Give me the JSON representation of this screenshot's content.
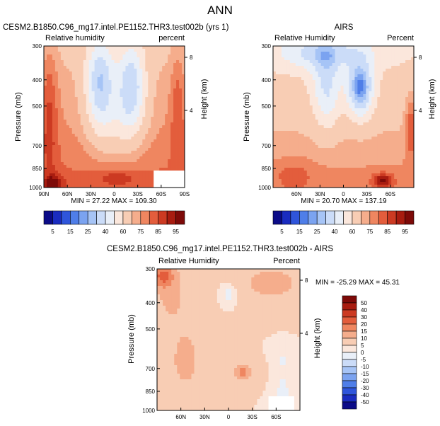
{
  "page_title": "ANN",
  "chart_data": [
    {
      "type": "heatmap",
      "id": "model",
      "title": "CESM2.B1850.C96_mg17.intel.PE1152.THR3.test002b (yrs 1)",
      "left_label": "Relative humidity",
      "right_label": "percent",
      "ylabel": "Pressure (mb)",
      "y2label": "Height (km)",
      "y_ticks": [
        "300",
        "400",
        "500",
        "700",
        "850",
        "1000"
      ],
      "y2_ticks": [
        "8",
        "4"
      ],
      "x_ticks": [
        "90N",
        "60N",
        "30N",
        "0",
        "30S",
        "60S",
        "90S"
      ],
      "stats": "MIN = 27.22   MAX = 109.30",
      "min": 27.22,
      "max": 109.3,
      "colorbar_ticks": [
        "5",
        "15",
        "25",
        "40",
        "60",
        "75",
        "85",
        "95"
      ]
    },
    {
      "type": "heatmap",
      "id": "obs",
      "title": "AIRS",
      "left_label": "Relative Humidity",
      "right_label": "Percent",
      "ylabel": "Pressure (mb)",
      "y2label": "Height (km)",
      "y_ticks": [
        "300",
        "400",
        "500",
        "700",
        "850",
        "1000"
      ],
      "y2_ticks": [
        "8",
        "4"
      ],
      "x_ticks": [
        "60N",
        "30N",
        "0",
        "30S",
        "60S"
      ],
      "stats": "MIN = 20.70   MAX = 137.19",
      "min": 20.7,
      "max": 137.19,
      "colorbar_ticks": [
        "5",
        "15",
        "25",
        "40",
        "60",
        "75",
        "85",
        "95"
      ]
    },
    {
      "type": "heatmap",
      "id": "diff",
      "title": "CESM2.B1850.C96_mg17.intel.PE1152.THR3.test002b - AIRS",
      "left_label": "Relative Humidity",
      "right_label": "Percent",
      "ylabel": "Pressure (mb)",
      "y2label": "Height (km)",
      "y_ticks": [
        "300",
        "400",
        "500",
        "700",
        "850",
        "1000"
      ],
      "y2_ticks": [
        "8",
        "4"
      ],
      "x_ticks": [
        "60N",
        "30N",
        "0",
        "30S",
        "60S"
      ],
      "stats": "MIN = -25.29   MAX = 45.31",
      "min": -25.29,
      "max": 45.31,
      "colorbar_ticks": [
        "50",
        "40",
        "30",
        "20",
        "15",
        "10",
        "5",
        "0",
        "-5",
        "-10",
        "-15",
        "-20",
        "-30",
        "-40",
        "-50"
      ]
    }
  ],
  "colors": {
    "rh_scale": [
      "#0b0b87",
      "#1a2cc0",
      "#2f55db",
      "#4f7ee8",
      "#7ba3f0",
      "#a6c4f6",
      "#cbdcf8",
      "#e9eff8",
      "#fbe7dc",
      "#f8cdb4",
      "#f5ad8c",
      "#ef8660",
      "#e35d3c",
      "#cc3a22",
      "#a81c10",
      "#7d0a08"
    ],
    "diff_scale": [
      "#0b0b87",
      "#1a2cc0",
      "#2f55db",
      "#4f7ee8",
      "#7ba3f0",
      "#a6c4f6",
      "#cbdcf8",
      "#e9eff8",
      "#fbe7dc",
      "#f8cdb4",
      "#f5ad8c",
      "#ef8660",
      "#e35d3c",
      "#cc3a22",
      "#a81c10",
      "#7d0a08"
    ],
    "missing": "#ffffff"
  }
}
